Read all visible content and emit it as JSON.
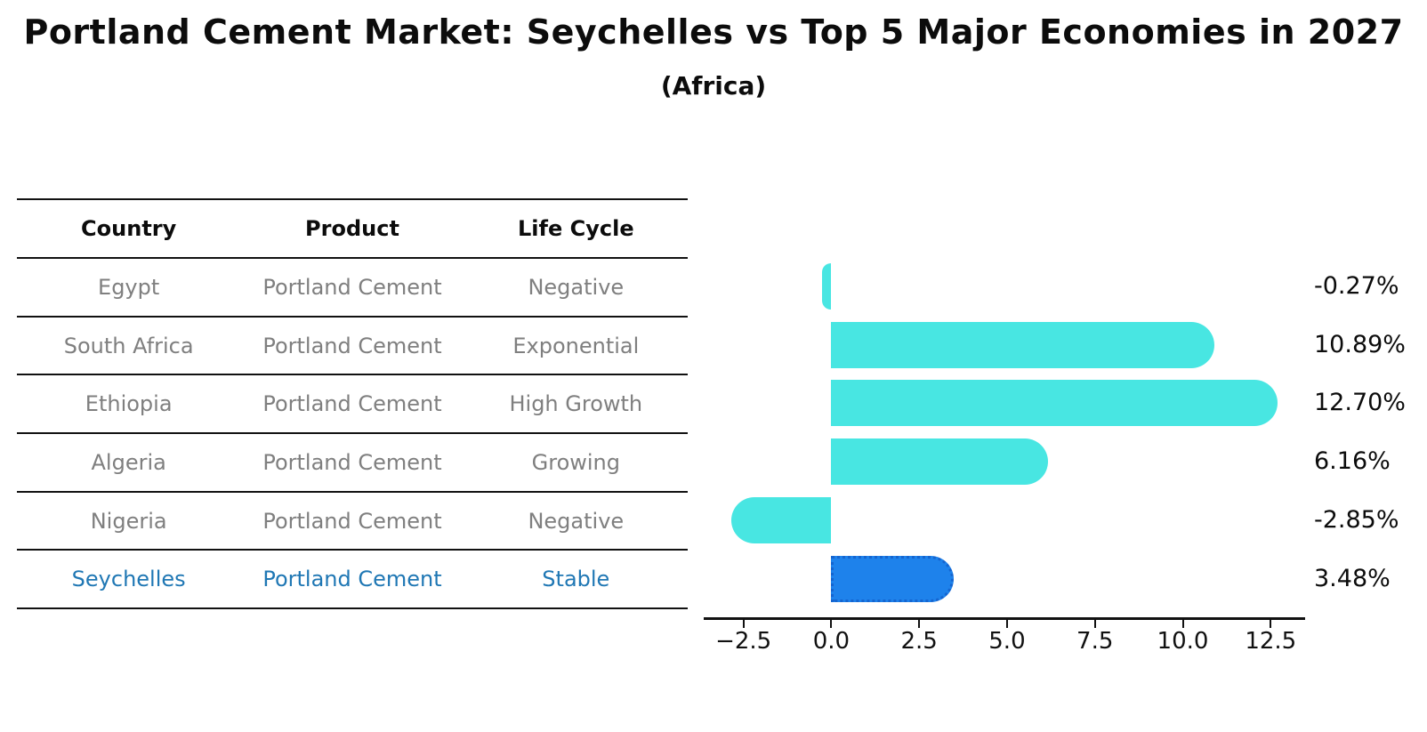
{
  "header": {
    "title": "Portland Cement Market: Seychelles vs Top 5 Major Economies in 2027",
    "subtitle": "(Africa)"
  },
  "table": {
    "columns": [
      "Country",
      "Product",
      "Life Cycle"
    ],
    "rows": [
      {
        "country": "Egypt",
        "product": "Portland Cement",
        "life_cycle": "Negative",
        "highlight": false
      },
      {
        "country": "South Africa",
        "product": "Portland Cement",
        "life_cycle": "Exponential",
        "highlight": false
      },
      {
        "country": "Ethiopia",
        "product": "Portland Cement",
        "life_cycle": "High Growth",
        "highlight": false
      },
      {
        "country": "Algeria",
        "product": "Portland Cement",
        "life_cycle": "Growing",
        "highlight": false
      },
      {
        "country": "Nigeria",
        "product": "Portland Cement",
        "life_cycle": "Negative",
        "highlight": false
      },
      {
        "country": "Seychelles",
        "product": "Portland Cement",
        "life_cycle": "Stable",
        "highlight": true
      }
    ]
  },
  "chart_data": {
    "type": "bar",
    "orientation": "horizontal",
    "title": "Portland Cement Market: Seychelles vs Top 5 Major Economies in 2027",
    "subtitle": "(Africa)",
    "categories": [
      "Egypt",
      "South Africa",
      "Ethiopia",
      "Algeria",
      "Nigeria",
      "Seychelles"
    ],
    "values": [
      -0.27,
      10.89,
      12.7,
      6.16,
      -2.85,
      3.48
    ],
    "value_labels": [
      "-0.27%",
      "10.89%",
      "12.70%",
      "6.16%",
      "-2.85%",
      "3.48%"
    ],
    "x_ticks": [
      -2.5,
      0.0,
      2.5,
      5.0,
      7.5,
      10.0,
      12.5
    ],
    "x_tick_labels": [
      "−2.5",
      "0.0",
      "2.5",
      "5.0",
      "7.5",
      "10.0",
      "12.5"
    ],
    "xlim": [
      -3.63,
      13.48
    ],
    "grid": false,
    "legend": "none",
    "unit": "percent",
    "highlight_index": 5,
    "bar_color": "#48E6E2",
    "highlight_bar_color": "#1E82EB",
    "highlight_bar_border": "#1565D0",
    "axis_color": "#111111",
    "muted_text_color": "#7f7f7f",
    "highlight_text_color": "#1f77b4"
  }
}
